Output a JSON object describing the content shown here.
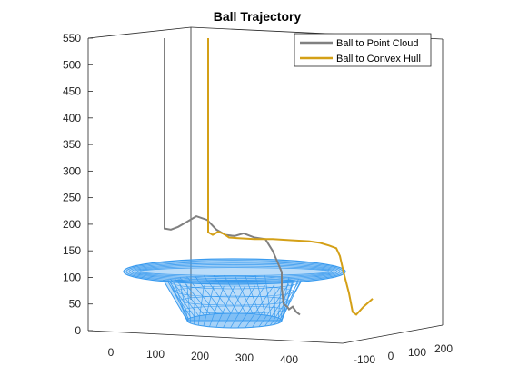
{
  "chart_data": {
    "type": "line",
    "title": "Ball Trajectory",
    "xlabel": "",
    "ylabel": "",
    "zlabel": "",
    "legend_position": "top-right",
    "grid": false,
    "axes": {
      "x": {
        "ticks": [
          "0",
          "100",
          "200",
          "300",
          "400"
        ]
      },
      "y": {
        "ticks": [
          "-100",
          "0",
          "100",
          "200"
        ]
      },
      "z": {
        "range": [
          0,
          550
        ],
        "ticks": [
          "0",
          "50",
          "100",
          "150",
          "200",
          "250",
          "300",
          "350",
          "400",
          "450",
          "500",
          "550"
        ]
      }
    },
    "series": [
      {
        "name": "Ball to Point Cloud",
        "color": "#808080",
        "z": [
          550,
          192,
          190,
          195,
          205,
          215,
          208,
          190,
          180,
          178,
          183,
          175,
          172,
          150,
          130,
          110,
          80,
          50,
          45,
          40,
          45,
          35,
          30
        ]
      },
      {
        "name": "Ball to Convex Hull",
        "color": "#d4a017",
        "z": [
          550,
          185,
          180,
          186,
          182,
          175,
          174,
          172,
          172,
          170,
          168,
          165,
          160,
          155,
          140,
          110,
          70,
          35,
          30,
          45,
          60
        ]
      }
    ],
    "surface": {
      "color": "#3a9bef",
      "shape": "tub"
    }
  }
}
